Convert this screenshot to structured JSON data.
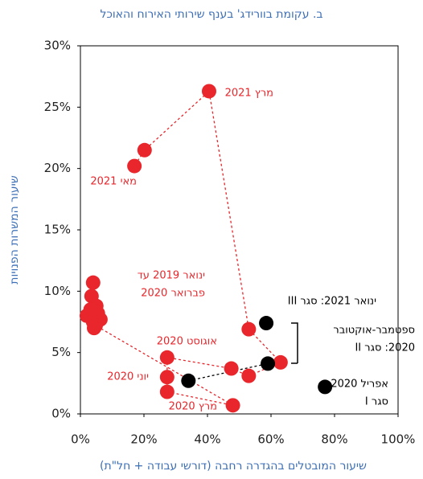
{
  "chart_data": {
    "type": "scatter",
    "title": "ב. עקומת בוורידג' בענף שירותי האירוח והאוכל",
    "x_label": "שיעור המובטלים בהגדרה רחבה (דורשי עבודה + חל\"ת)",
    "y_label": "שיעור המשרות הפנויות",
    "xlim": [
      0,
      100
    ],
    "ylim": [
      0,
      30
    ],
    "xticks": [
      {
        "value": 0,
        "label": "0%"
      },
      {
        "value": 20,
        "label": "20%"
      },
      {
        "value": 40,
        "label": "40%"
      },
      {
        "value": 60,
        "label": "60%"
      },
      {
        "value": 80,
        "label": "80%"
      },
      {
        "value": 100,
        "label": "100%"
      }
    ],
    "yticks": [
      {
        "value": 0,
        "label": "0%"
      },
      {
        "value": 5,
        "label": "5%"
      },
      {
        "value": 10,
        "label": "10%"
      },
      {
        "value": 15,
        "label": "15%"
      },
      {
        "value": 20,
        "label": "20%"
      },
      {
        "value": 25,
        "label": "25%"
      },
      {
        "value": 30,
        "label": "30%"
      }
    ],
    "series": [
      {
        "color": "#e8262b",
        "x": [
          2,
          4,
          3.5,
          5,
          5.5,
          4.3,
          6.3,
          4,
          3.2,
          4.8,
          48,
          27.3,
          27.3,
          27.3,
          47.5,
          53,
          63,
          53,
          40.5,
          20.2,
          17
        ],
        "values": [
          8,
          10.7,
          9.6,
          8.8,
          8.2,
          7,
          7.7,
          7.5,
          8.5,
          7.2,
          0.7,
          1.8,
          3,
          4.6,
          3.7,
          3.1,
          4.2,
          6.9,
          26.3,
          21.5,
          20.2
        ]
      },
      {
        "color": "#000000",
        "x": [
          77,
          34,
          59,
          58.5
        ],
        "values": [
          2.2,
          2.7,
          4.1,
          7.4
        ]
      }
    ],
    "annotations": [
      [
        "מרץ 2021"
      ],
      [
        "מאי 2021"
      ],
      [
        "ינואר 2019 עד",
        "פברואר 2020"
      ],
      [
        "אוגוסט 2020"
      ],
      [
        "יוני 2020"
      ],
      [
        "מרץ 2020"
      ],
      [
        "ינואר 2021: סגר III"
      ],
      [
        "ספטמבר-אוקטובר",
        "2020: סגר II"
      ],
      [
        "אפריל 2020:",
        "סגר I"
      ]
    ]
  }
}
